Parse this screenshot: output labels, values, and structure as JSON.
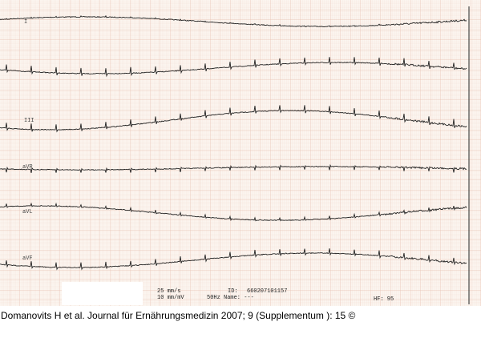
{
  "leads": [
    "I",
    "III",
    "aVR",
    "aVL",
    "aVF"
  ],
  "footer": {
    "speed": "25 mm/s",
    "gain": "10 mm/mV",
    "id_label": "ID:",
    "id": "660207101157",
    "name": "50Hz Name: ---",
    "hf": "HF: 95"
  },
  "caption": "Domanovits H et al. Journal für Ernährungsmedizin 2007; 9 (Supplementum ): 15 ©"
}
